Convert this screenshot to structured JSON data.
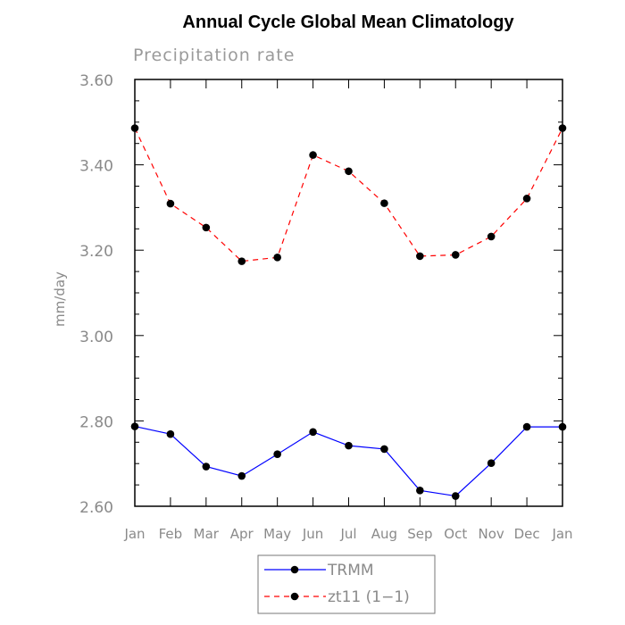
{
  "chart_data": {
    "type": "line",
    "title": "Annual Cycle Global Mean Climatology",
    "subtitle": "Precipitation rate",
    "xlabel": "",
    "ylabel": "mm/day",
    "ylim": [
      2.6,
      3.6
    ],
    "yticks": [
      "2.60",
      "2.80",
      "3.00",
      "3.20",
      "3.40",
      "3.60"
    ],
    "categories": [
      "Jan",
      "Feb",
      "Mar",
      "Apr",
      "May",
      "Jun",
      "Jul",
      "Aug",
      "Sep",
      "Oct",
      "Nov",
      "Dec",
      "Jan"
    ],
    "grid": false,
    "legend_position": "bottom-center",
    "series": [
      {
        "name": "TRMM",
        "color": "#0000ff",
        "dash": "solid",
        "marker": "circle",
        "values": [
          2.787,
          2.769,
          2.693,
          2.671,
          2.722,
          2.774,
          2.742,
          2.734,
          2.637,
          2.624,
          2.701,
          2.786,
          2.786
        ]
      },
      {
        "name": "zt11 (1−1)",
        "color": "#ff0000",
        "dash": "dashed",
        "marker": "circle",
        "values": [
          3.486,
          3.309,
          3.253,
          3.174,
          3.183,
          3.423,
          3.385,
          3.31,
          3.186,
          3.189,
          3.232,
          3.321,
          3.486
        ]
      }
    ]
  }
}
